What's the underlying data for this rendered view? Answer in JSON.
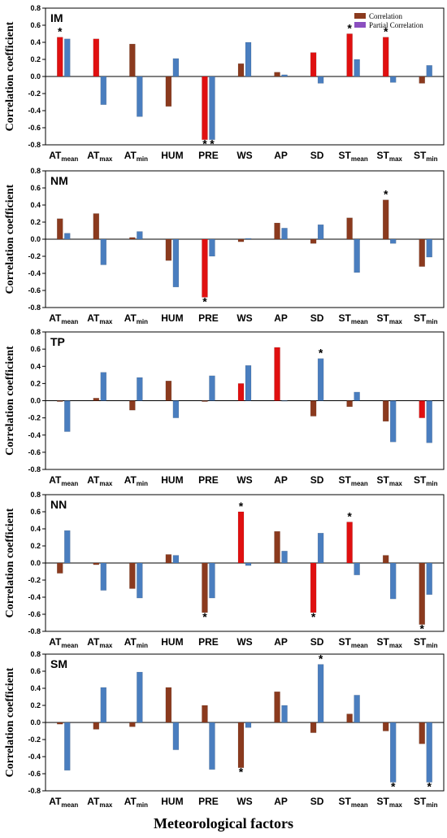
{
  "xlabel": "Meteorological factors",
  "ylabel": "Correlation coefficient",
  "legend": {
    "correlation": "Correlation",
    "partial": "Partial Correlation"
  },
  "colors": {
    "correlation": "#8b3a1e",
    "partial": "#4a7ebf",
    "highlight": "#e01010",
    "legend_partial": "#8b4fc0"
  },
  "chart_data": [
    {
      "type": "bar",
      "panel": "IM",
      "ylim": [
        -0.8,
        0.8
      ],
      "yticks": [
        0.8,
        0.6,
        0.4,
        0.2,
        0.0,
        -0.2,
        -0.4,
        -0.6,
        -0.8
      ],
      "categories": [
        {
          "base": "AT",
          "sub": "mean"
        },
        {
          "base": "AT",
          "sub": "max"
        },
        {
          "base": "AT",
          "sub": "min"
        },
        {
          "base": "HUM",
          "sub": ""
        },
        {
          "base": "PRE",
          "sub": ""
        },
        {
          "base": "WS",
          "sub": ""
        },
        {
          "base": "AP",
          "sub": ""
        },
        {
          "base": "SD",
          "sub": ""
        },
        {
          "base": "ST",
          "sub": "mean"
        },
        {
          "base": "ST",
          "sub": "max"
        },
        {
          "base": "ST",
          "sub": "min"
        }
      ],
      "series": [
        {
          "name": "Correlation",
          "values": [
            0.46,
            0.44,
            0.38,
            -0.35,
            -0.74,
            0.15,
            0.05,
            0.28,
            0.5,
            0.46,
            -0.08
          ]
        },
        {
          "name": "Partial Correlation",
          "values": [
            0.44,
            -0.33,
            -0.47,
            0.21,
            -0.74,
            0.4,
            0.02,
            -0.08,
            0.2,
            -0.07,
            0.13
          ]
        }
      ],
      "highlighted_correlation": [
        true,
        true,
        false,
        false,
        true,
        false,
        false,
        true,
        true,
        true,
        false
      ],
      "significant": [
        {
          "category": 0,
          "series": 0
        },
        {
          "category": 4,
          "series": 0
        },
        {
          "category": 4,
          "series": 1
        },
        {
          "category": 8,
          "series": 0
        },
        {
          "category": 9,
          "series": 0
        }
      ],
      "legend_shown": true
    },
    {
      "type": "bar",
      "panel": "NM",
      "ylim": [
        -0.8,
        0.8
      ],
      "yticks": [
        0.8,
        0.6,
        0.4,
        0.2,
        0.0,
        -0.2,
        -0.4,
        -0.6,
        -0.8
      ],
      "categories": [
        {
          "base": "AT",
          "sub": "mean"
        },
        {
          "base": "AT",
          "sub": "max"
        },
        {
          "base": "AT",
          "sub": "min"
        },
        {
          "base": "HUM",
          "sub": ""
        },
        {
          "base": "PRE",
          "sub": ""
        },
        {
          "base": "WS",
          "sub": ""
        },
        {
          "base": "AP",
          "sub": ""
        },
        {
          "base": "SD",
          "sub": ""
        },
        {
          "base": "ST",
          "sub": "mean"
        },
        {
          "base": "ST",
          "sub": "max"
        },
        {
          "base": "ST",
          "sub": "min"
        }
      ],
      "series": [
        {
          "name": "Correlation",
          "values": [
            0.24,
            0.3,
            0.02,
            -0.25,
            -0.68,
            -0.03,
            0.19,
            -0.05,
            0.25,
            0.46,
            -0.32
          ]
        },
        {
          "name": "Partial Correlation",
          "values": [
            0.07,
            -0.3,
            0.09,
            -0.56,
            -0.2,
            0.01,
            0.13,
            0.17,
            -0.39,
            -0.05,
            -0.21
          ]
        }
      ],
      "highlighted_correlation": [
        false,
        false,
        false,
        false,
        true,
        false,
        false,
        false,
        false,
        false,
        false
      ],
      "significant": [
        {
          "category": 4,
          "series": 0
        },
        {
          "category": 9,
          "series": 0
        }
      ],
      "legend_shown": false
    },
    {
      "type": "bar",
      "panel": "TP",
      "ylim": [
        -0.8,
        0.8
      ],
      "yticks": [
        0.8,
        0.6,
        0.4,
        0.2,
        0.0,
        -0.2,
        -0.4,
        -0.6,
        -0.8
      ],
      "categories": [
        {
          "base": "AT",
          "sub": "mean"
        },
        {
          "base": "AT",
          "sub": "max"
        },
        {
          "base": "AT",
          "sub": "min"
        },
        {
          "base": "HUM",
          "sub": ""
        },
        {
          "base": "PRE",
          "sub": ""
        },
        {
          "base": "WS",
          "sub": ""
        },
        {
          "base": "AP",
          "sub": ""
        },
        {
          "base": "SD",
          "sub": ""
        },
        {
          "base": "ST",
          "sub": "mean"
        },
        {
          "base": "ST",
          "sub": "max"
        },
        {
          "base": "ST",
          "sub": "min"
        }
      ],
      "series": [
        {
          "name": "Correlation",
          "values": [
            -0.01,
            0.03,
            -0.11,
            0.23,
            -0.01,
            0.2,
            0.62,
            -0.18,
            -0.07,
            -0.24,
            -0.2
          ]
        },
        {
          "name": "Partial Correlation",
          "values": [
            -0.36,
            0.33,
            0.27,
            -0.2,
            0.29,
            0.41,
            0.0,
            0.49,
            0.1,
            -0.48,
            -0.49
          ]
        }
      ],
      "highlighted_correlation": [
        false,
        false,
        false,
        false,
        false,
        true,
        true,
        false,
        false,
        false,
        true
      ],
      "significant": [
        {
          "category": 7,
          "series": 1
        }
      ],
      "legend_shown": false
    },
    {
      "type": "bar",
      "panel": "NN",
      "ylim": [
        -0.8,
        0.8
      ],
      "yticks": [
        0.8,
        0.6,
        0.4,
        0.2,
        0.0,
        -0.2,
        -0.4,
        -0.6,
        -0.8
      ],
      "categories": [
        {
          "base": "AT",
          "sub": "mean"
        },
        {
          "base": "AT",
          "sub": "max"
        },
        {
          "base": "AT",
          "sub": "min"
        },
        {
          "base": "HUM",
          "sub": ""
        },
        {
          "base": "PRE",
          "sub": ""
        },
        {
          "base": "WS",
          "sub": ""
        },
        {
          "base": "AP",
          "sub": ""
        },
        {
          "base": "SD",
          "sub": ""
        },
        {
          "base": "ST",
          "sub": "mean"
        },
        {
          "base": "ST",
          "sub": "max"
        },
        {
          "base": "ST",
          "sub": "min"
        }
      ],
      "series": [
        {
          "name": "Correlation",
          "values": [
            -0.12,
            -0.02,
            -0.3,
            0.1,
            -0.58,
            0.6,
            0.37,
            -0.58,
            0.48,
            0.09,
            -0.72
          ]
        },
        {
          "name": "Partial Correlation",
          "values": [
            0.38,
            -0.32,
            -0.41,
            0.09,
            -0.41,
            -0.03,
            0.14,
            0.35,
            -0.14,
            -0.42,
            -0.37
          ]
        }
      ],
      "highlighted_correlation": [
        false,
        false,
        false,
        false,
        false,
        true,
        false,
        true,
        true,
        false,
        false
      ],
      "significant": [
        {
          "category": 4,
          "series": 0
        },
        {
          "category": 5,
          "series": 0
        },
        {
          "category": 7,
          "series": 0
        },
        {
          "category": 8,
          "series": 0
        },
        {
          "category": 10,
          "series": 0
        }
      ],
      "legend_shown": false
    },
    {
      "type": "bar",
      "panel": "SM",
      "ylim": [
        -0.8,
        0.8
      ],
      "yticks": [
        0.8,
        0.6,
        0.4,
        0.2,
        0.0,
        -0.2,
        -0.4,
        -0.6,
        -0.8
      ],
      "categories": [
        {
          "base": "AT",
          "sub": "mean"
        },
        {
          "base": "AT",
          "sub": "max"
        },
        {
          "base": "AT",
          "sub": "min"
        },
        {
          "base": "HUM",
          "sub": ""
        },
        {
          "base": "PRE",
          "sub": ""
        },
        {
          "base": "WS",
          "sub": ""
        },
        {
          "base": "AP",
          "sub": ""
        },
        {
          "base": "SD",
          "sub": ""
        },
        {
          "base": "ST",
          "sub": "mean"
        },
        {
          "base": "ST",
          "sub": "max"
        },
        {
          "base": "ST",
          "sub": "min"
        }
      ],
      "series": [
        {
          "name": "Correlation",
          "values": [
            -0.02,
            -0.08,
            -0.05,
            0.41,
            0.2,
            -0.53,
            0.36,
            -0.12,
            0.1,
            -0.1,
            -0.25
          ]
        },
        {
          "name": "Partial Correlation",
          "values": [
            -0.56,
            0.41,
            0.59,
            -0.32,
            -0.55,
            -0.06,
            0.2,
            0.68,
            0.32,
            -0.7,
            -0.7
          ]
        }
      ],
      "highlighted_correlation": [
        false,
        false,
        false,
        false,
        false,
        false,
        false,
        false,
        false,
        false,
        false
      ],
      "significant": [
        {
          "category": 5,
          "series": 0
        },
        {
          "category": 7,
          "series": 1
        },
        {
          "category": 9,
          "series": 1
        },
        {
          "category": 10,
          "series": 1
        }
      ],
      "legend_shown": false
    }
  ]
}
